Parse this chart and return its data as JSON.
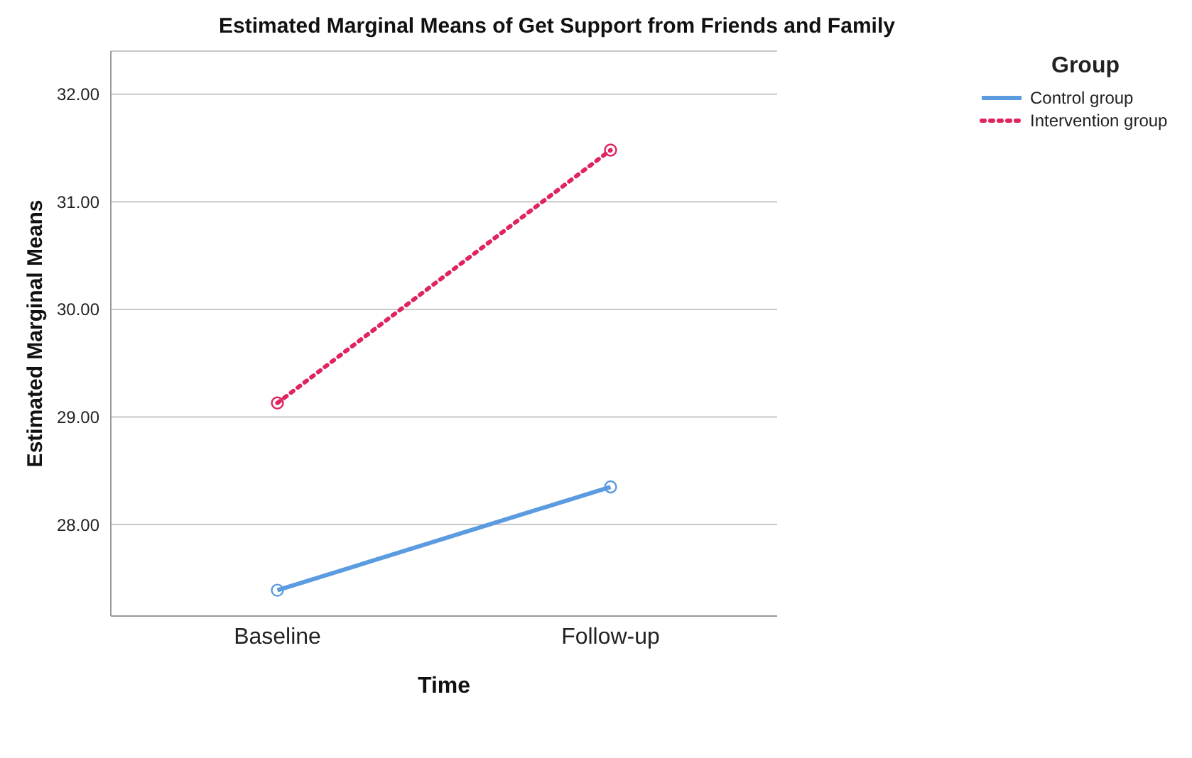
{
  "chart_data": {
    "type": "line",
    "title": "Estimated Marginal Means of Get Support from Friends and Family",
    "xlabel": "Time",
    "ylabel": "Estimated Marginal Means",
    "legend_title": "Group",
    "categories": [
      "Baseline",
      "Follow-up"
    ],
    "series": [
      {
        "name": "Control group",
        "color": "#5b9be0",
        "values": [
          27.39,
          28.35
        ],
        "line_style": "solid"
      },
      {
        "name": "Intervention group",
        "color": "#e0245e",
        "values": [
          29.13,
          31.48
        ],
        "line_style": "dotted"
      }
    ],
    "ylim": [
      27.15,
      32.4
    ],
    "yticks": [
      {
        "value": 28,
        "label": "28.00"
      },
      {
        "value": 29,
        "label": "29.00"
      },
      {
        "value": 30,
        "label": "30.00"
      },
      {
        "value": 31,
        "label": "31.00"
      },
      {
        "value": 32,
        "label": "32.00"
      }
    ],
    "grid": "y",
    "legend": "top right",
    "marker": "circle"
  }
}
